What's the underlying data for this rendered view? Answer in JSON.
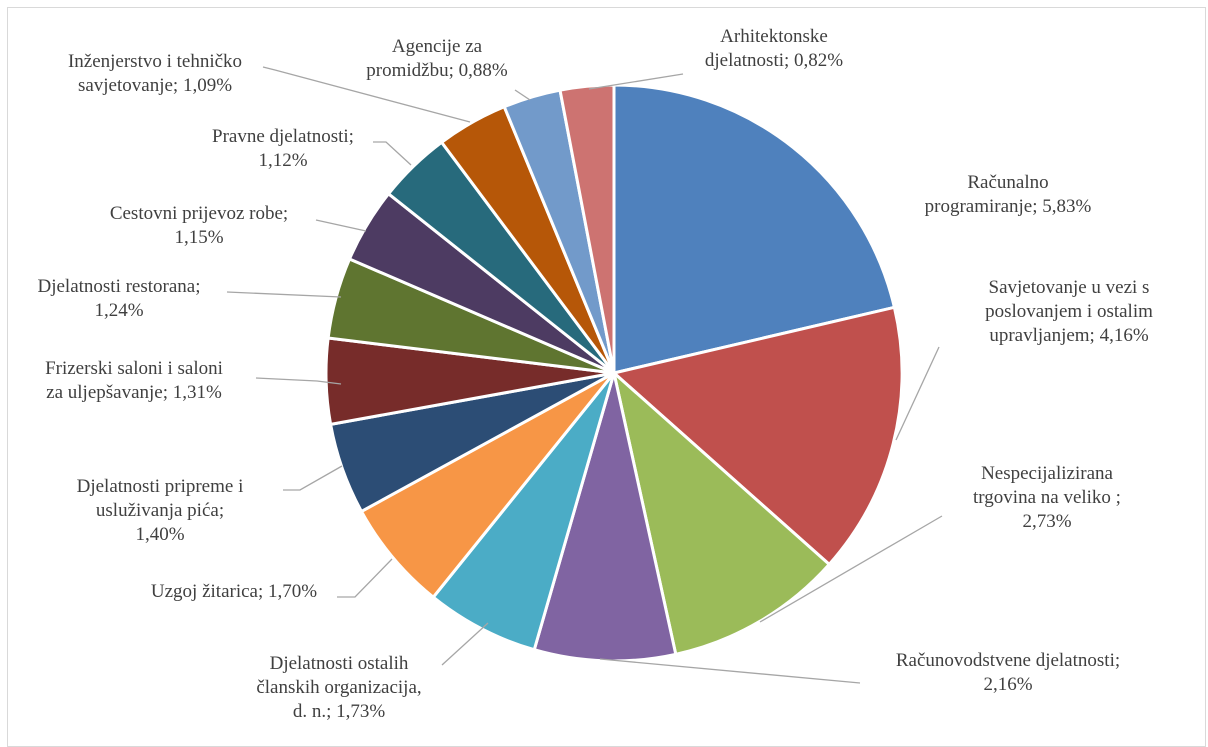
{
  "chart_data": {
    "type": "pie",
    "title": "",
    "start_angle_deg": 0,
    "direction": "clockwise",
    "slices": [
      {
        "label": "Računalno programiranje",
        "value": 5.83,
        "display": "5,83%",
        "color": "#4f81bd"
      },
      {
        "label": "Savjetovanje u vezi s poslovanjem i ostalim upravljanjem",
        "value": 4.16,
        "display": "4,16%",
        "color": "#c0504d"
      },
      {
        "label": "Nespecijalizirana trgovina na veliko",
        "value": 2.73,
        "display": "2,73%",
        "color": "#9bbb59"
      },
      {
        "label": "Računovodstvene djelatnosti",
        "value": 2.16,
        "display": "2,16%",
        "color": "#8064a2"
      },
      {
        "label": "Djelatnosti ostalih članskih organizacija, d. n.",
        "value": 1.73,
        "display": "1,73%",
        "color": "#4bacc6"
      },
      {
        "label": "Uzgoj žitarica",
        "value": 1.7,
        "display": "1,70%",
        "color": "#f79646"
      },
      {
        "label": "Djelatnosti pripreme i usluživanja pića",
        "value": 1.4,
        "display": "1,40%",
        "color": "#2c4d75"
      },
      {
        "label": "Frizerski saloni i saloni za uljepšavanje",
        "value": 1.31,
        "display": "1,31%",
        "color": "#772c2a"
      },
      {
        "label": "Djelatnosti restorana",
        "value": 1.24,
        "display": "1,24%",
        "color": "#5f7530"
      },
      {
        "label": "Cestovni prijevoz robe",
        "value": 1.15,
        "display": "1,15%",
        "color": "#4d3b62"
      },
      {
        "label": "Pravne djelatnosti",
        "value": 1.12,
        "display": "1,12%",
        "color": "#276a7c"
      },
      {
        "label": "Inženjerstvo i tehničko savjetovanje",
        "value": 1.09,
        "display": "1,09%",
        "color": "#b65708"
      },
      {
        "label": "Agencije za promidžbu",
        "value": 0.88,
        "display": "0,88%",
        "color": "#729aca"
      },
      {
        "label": "Arhitektonske djelatnosti",
        "value": 0.82,
        "display": "0,82%",
        "color": "#cd7371"
      }
    ],
    "data_labels": [
      [
        "Računalno",
        "programiranje; 5,83%"
      ],
      [
        "Savjetovanje u vezi s",
        "poslovanjem i ostalim",
        "upravljanjem; 4,16%"
      ],
      [
        "Nespecijalizirana",
        "trgovina na veliko ;",
        "2,73%"
      ],
      [
        "Računovodstvene djelatnosti;",
        "2,16%"
      ],
      [
        "Djelatnosti ostalih",
        "članskih organizacija,",
        "d. n.; 1,73%"
      ],
      [
        "Uzgoj žitarica; 1,70%"
      ],
      [
        "Djelatnosti pripreme i",
        "usluživanja pića;",
        "1,40%"
      ],
      [
        "Frizerski saloni i saloni",
        "za uljepšavanje; 1,31%"
      ],
      [
        "Djelatnosti restorana;",
        "1,24%"
      ],
      [
        "Cestovni prijevoz robe;",
        "1,15%"
      ],
      [
        "Pravne djelatnosti;",
        "1,12%"
      ],
      [
        "Inženjerstvo i tehničko",
        "savjetovanje; 1,09%"
      ],
      [
        "Agencije za",
        "promidžbu; 0,88%"
      ],
      [
        "Arhitektonske",
        "djelatnosti; 0,82%"
      ]
    ],
    "legend": "none"
  }
}
